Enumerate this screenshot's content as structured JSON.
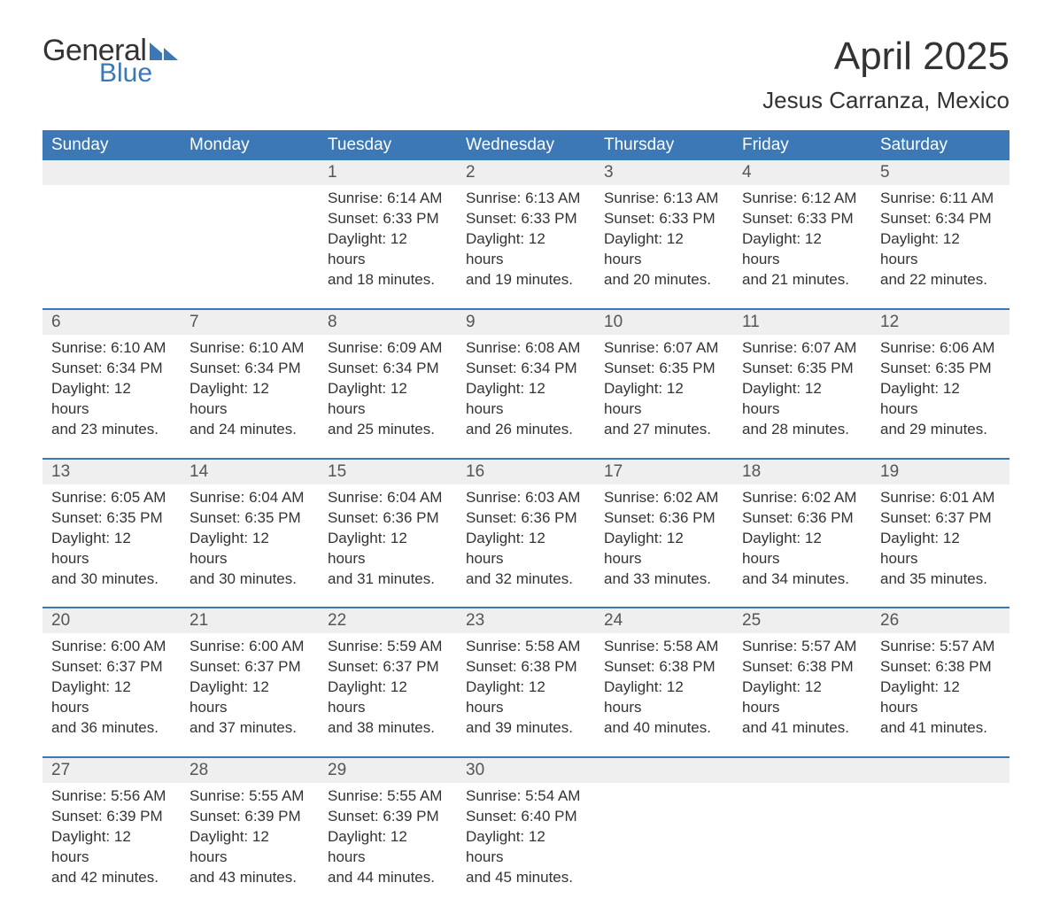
{
  "brand": {
    "part1": "General",
    "part2": "Blue",
    "flag_color": "#3b78b5"
  },
  "title": "April 2025",
  "subtitle": "Jesus Carranza, Mexico",
  "colors": {
    "header_bg": "#3b78b5",
    "header_text": "#ffffff",
    "daynum_bg": "#efefef",
    "row_border": "#3b78b5",
    "text": "#333333"
  },
  "weekdays": [
    "Sunday",
    "Monday",
    "Tuesday",
    "Wednesday",
    "Thursday",
    "Friday",
    "Saturday"
  ],
  "labels": {
    "sunrise": "Sunrise: ",
    "sunset": "Sunset: ",
    "daylight": "Daylight: "
  },
  "weeks": [
    [
      null,
      null,
      {
        "n": "1",
        "sunrise": "6:14 AM",
        "sunset": "6:33 PM",
        "dl1": "12 hours",
        "dl2": "and 18 minutes."
      },
      {
        "n": "2",
        "sunrise": "6:13 AM",
        "sunset": "6:33 PM",
        "dl1": "12 hours",
        "dl2": "and 19 minutes."
      },
      {
        "n": "3",
        "sunrise": "6:13 AM",
        "sunset": "6:33 PM",
        "dl1": "12 hours",
        "dl2": "and 20 minutes."
      },
      {
        "n": "4",
        "sunrise": "6:12 AM",
        "sunset": "6:33 PM",
        "dl1": "12 hours",
        "dl2": "and 21 minutes."
      },
      {
        "n": "5",
        "sunrise": "6:11 AM",
        "sunset": "6:34 PM",
        "dl1": "12 hours",
        "dl2": "and 22 minutes."
      }
    ],
    [
      {
        "n": "6",
        "sunrise": "6:10 AM",
        "sunset": "6:34 PM",
        "dl1": "12 hours",
        "dl2": "and 23 minutes."
      },
      {
        "n": "7",
        "sunrise": "6:10 AM",
        "sunset": "6:34 PM",
        "dl1": "12 hours",
        "dl2": "and 24 minutes."
      },
      {
        "n": "8",
        "sunrise": "6:09 AM",
        "sunset": "6:34 PM",
        "dl1": "12 hours",
        "dl2": "and 25 minutes."
      },
      {
        "n": "9",
        "sunrise": "6:08 AM",
        "sunset": "6:34 PM",
        "dl1": "12 hours",
        "dl2": "and 26 minutes."
      },
      {
        "n": "10",
        "sunrise": "6:07 AM",
        "sunset": "6:35 PM",
        "dl1": "12 hours",
        "dl2": "and 27 minutes."
      },
      {
        "n": "11",
        "sunrise": "6:07 AM",
        "sunset": "6:35 PM",
        "dl1": "12 hours",
        "dl2": "and 28 minutes."
      },
      {
        "n": "12",
        "sunrise": "6:06 AM",
        "sunset": "6:35 PM",
        "dl1": "12 hours",
        "dl2": "and 29 minutes."
      }
    ],
    [
      {
        "n": "13",
        "sunrise": "6:05 AM",
        "sunset": "6:35 PM",
        "dl1": "12 hours",
        "dl2": "and 30 minutes."
      },
      {
        "n": "14",
        "sunrise": "6:04 AM",
        "sunset": "6:35 PM",
        "dl1": "12 hours",
        "dl2": "and 30 minutes."
      },
      {
        "n": "15",
        "sunrise": "6:04 AM",
        "sunset": "6:36 PM",
        "dl1": "12 hours",
        "dl2": "and 31 minutes."
      },
      {
        "n": "16",
        "sunrise": "6:03 AM",
        "sunset": "6:36 PM",
        "dl1": "12 hours",
        "dl2": "and 32 minutes."
      },
      {
        "n": "17",
        "sunrise": "6:02 AM",
        "sunset": "6:36 PM",
        "dl1": "12 hours",
        "dl2": "and 33 minutes."
      },
      {
        "n": "18",
        "sunrise": "6:02 AM",
        "sunset": "6:36 PM",
        "dl1": "12 hours",
        "dl2": "and 34 minutes."
      },
      {
        "n": "19",
        "sunrise": "6:01 AM",
        "sunset": "6:37 PM",
        "dl1": "12 hours",
        "dl2": "and 35 minutes."
      }
    ],
    [
      {
        "n": "20",
        "sunrise": "6:00 AM",
        "sunset": "6:37 PM",
        "dl1": "12 hours",
        "dl2": "and 36 minutes."
      },
      {
        "n": "21",
        "sunrise": "6:00 AM",
        "sunset": "6:37 PM",
        "dl1": "12 hours",
        "dl2": "and 37 minutes."
      },
      {
        "n": "22",
        "sunrise": "5:59 AM",
        "sunset": "6:37 PM",
        "dl1": "12 hours",
        "dl2": "and 38 minutes."
      },
      {
        "n": "23",
        "sunrise": "5:58 AM",
        "sunset": "6:38 PM",
        "dl1": "12 hours",
        "dl2": "and 39 minutes."
      },
      {
        "n": "24",
        "sunrise": "5:58 AM",
        "sunset": "6:38 PM",
        "dl1": "12 hours",
        "dl2": "and 40 minutes."
      },
      {
        "n": "25",
        "sunrise": "5:57 AM",
        "sunset": "6:38 PM",
        "dl1": "12 hours",
        "dl2": "and 41 minutes."
      },
      {
        "n": "26",
        "sunrise": "5:57 AM",
        "sunset": "6:38 PM",
        "dl1": "12 hours",
        "dl2": "and 41 minutes."
      }
    ],
    [
      {
        "n": "27",
        "sunrise": "5:56 AM",
        "sunset": "6:39 PM",
        "dl1": "12 hours",
        "dl2": "and 42 minutes."
      },
      {
        "n": "28",
        "sunrise": "5:55 AM",
        "sunset": "6:39 PM",
        "dl1": "12 hours",
        "dl2": "and 43 minutes."
      },
      {
        "n": "29",
        "sunrise": "5:55 AM",
        "sunset": "6:39 PM",
        "dl1": "12 hours",
        "dl2": "and 44 minutes."
      },
      {
        "n": "30",
        "sunrise": "5:54 AM",
        "sunset": "6:40 PM",
        "dl1": "12 hours",
        "dl2": "and 45 minutes."
      },
      null,
      null,
      null
    ]
  ]
}
